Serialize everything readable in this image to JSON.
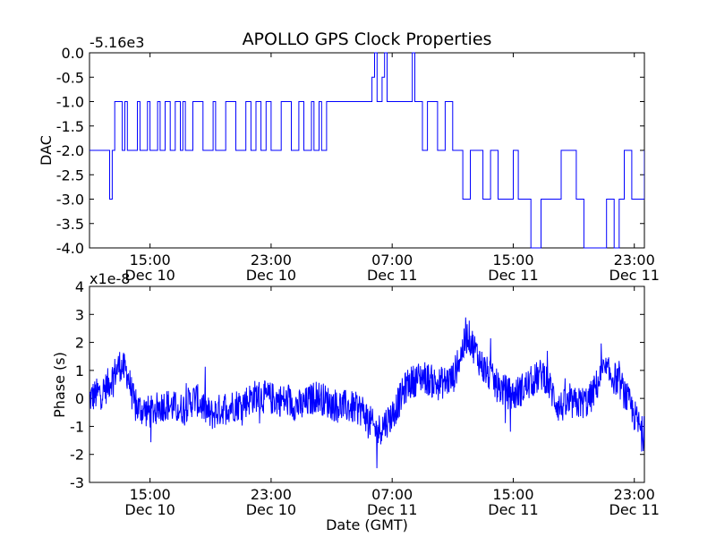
{
  "figure": {
    "title": "APOLLO GPS Clock Properties",
    "xlabel": "Date (GMT)"
  },
  "chart_data": [
    {
      "type": "line",
      "ylabel": "DAC",
      "offset_label": "-5.16e3",
      "ylim": [
        -4.0,
        0.0
      ],
      "xlim": [
        "2010-12-10 11:00",
        "2010-12-11 23:40"
      ],
      "yticks": [
        0.0,
        -0.5,
        -1.0,
        -1.5,
        -2.0,
        -2.5,
        -3.0,
        -3.5,
        -4.0
      ],
      "ytick_labels": [
        "0.0",
        "-0.5",
        "-1.0",
        "-1.5",
        "-2.0",
        "-2.5",
        "-3.0",
        "-3.5",
        "-4.0"
      ],
      "xticks": [
        "2010-12-10 15:00",
        "2010-12-10 23:00",
        "2010-12-11 07:00",
        "2010-12-11 15:00",
        "2010-12-11 23:00"
      ],
      "xtick_time_labels": [
        "15:00",
        "23:00",
        "07:00",
        "15:00",
        "23:00"
      ],
      "xtick_date_labels": [
        "Dec 10",
        "Dec 10",
        "Dec 11",
        "Dec 11",
        "Dec 11"
      ],
      "grid": false,
      "series": [
        {
          "color": "#0000ff",
          "x": [
            "2010-12-10 11:00",
            "2010-12-10 12:10",
            "2010-12-10 12:20",
            "2010-12-10 12:30",
            "2010-12-10 12:40",
            "2010-12-10 13:10",
            "2010-12-10 13:20",
            "2010-12-10 13:30",
            "2010-12-10 14:10",
            "2010-12-10 14:20",
            "2010-12-10 14:50",
            "2010-12-10 15:00",
            "2010-12-10 15:30",
            "2010-12-10 15:40",
            "2010-12-10 16:00",
            "2010-12-10 16:20",
            "2010-12-10 16:40",
            "2010-12-10 17:00",
            "2010-12-10 17:10",
            "2010-12-10 17:20",
            "2010-12-10 17:50",
            "2010-12-10 18:30",
            "2010-12-10 19:10",
            "2010-12-10 19:20",
            "2010-12-10 20:00",
            "2010-12-10 20:40",
            "2010-12-10 21:20",
            "2010-12-10 21:40",
            "2010-12-10 22:00",
            "2010-12-10 22:20",
            "2010-12-10 22:40",
            "2010-12-10 23:00",
            "2010-12-10 23:40",
            "2010-12-11 00:20",
            "2010-12-11 00:50",
            "2010-12-11 01:10",
            "2010-12-11 01:40",
            "2010-12-11 01:50",
            "2010-12-11 02:10",
            "2010-12-11 02:20",
            "2010-12-11 02:40",
            "2010-12-11 03:20",
            "2010-12-11 04:10",
            "2010-12-11 04:50",
            "2010-12-11 05:40",
            "2010-12-11 05:50",
            "2010-12-11 06:00",
            "2010-12-11 06:20",
            "2010-12-11 06:30",
            "2010-12-11 06:40",
            "2010-12-11 07:40",
            "2010-12-11 08:20",
            "2010-12-11 08:30",
            "2010-12-11 09:00",
            "2010-12-11 09:20",
            "2010-12-11 10:00",
            "2010-12-11 10:30",
            "2010-12-11 11:00",
            "2010-12-11 11:40",
            "2010-12-11 12:10",
            "2010-12-11 13:00",
            "2010-12-11 13:30",
            "2010-12-11 14:00",
            "2010-12-11 15:00",
            "2010-12-11 15:20",
            "2010-12-11 16:10",
            "2010-12-11 16:50",
            "2010-12-11 17:10",
            "2010-12-11 18:10",
            "2010-12-11 19:10",
            "2010-12-11 19:20",
            "2010-12-11 19:40",
            "2010-12-11 20:20",
            "2010-12-11 21:10",
            "2010-12-11 21:40",
            "2010-12-11 22:00",
            "2010-12-11 22:20",
            "2010-12-11 22:50",
            "2010-12-11 23:40"
          ],
          "y": [
            -2.0,
            -2.0,
            -3.0,
            -2.0,
            -1.0,
            -2.0,
            -1.0,
            -2.0,
            -1.0,
            -2.0,
            -1.0,
            -2.0,
            -1.0,
            -2.0,
            -1.0,
            -2.0,
            -1.0,
            -2.0,
            -1.0,
            -2.0,
            -1.0,
            -2.0,
            -1.0,
            -2.0,
            -1.0,
            -2.0,
            -1.0,
            -2.0,
            -1.0,
            -2.0,
            -1.0,
            -2.0,
            -1.0,
            -2.0,
            -1.0,
            -2.0,
            -1.0,
            -2.0,
            -1.0,
            -2.0,
            -1.0,
            -1.0,
            -1.0,
            -1.0,
            -0.5,
            0.0,
            -1.0,
            -0.5,
            0.0,
            -1.0,
            -1.0,
            0.0,
            -1.0,
            -2.0,
            -1.0,
            -2.0,
            -1.0,
            -2.0,
            -3.0,
            -2.0,
            -3.0,
            -2.0,
            -3.0,
            -2.0,
            -3.0,
            -4.0,
            -3.0,
            -3.0,
            -2.0,
            -3.0,
            -3.0,
            -4.0,
            -4.0,
            -3.0,
            -4.0,
            -3.0,
            -2.0,
            -3.0,
            -2.0
          ]
        }
      ]
    },
    {
      "type": "line",
      "ylabel": "Phase (s)",
      "offset_label": "x1e-8",
      "ylim": [
        -3,
        4
      ],
      "xlim": [
        "2010-12-10 11:00",
        "2010-12-11 23:40"
      ],
      "yticks": [
        4,
        3,
        2,
        1,
        0,
        -1,
        -2,
        -3
      ],
      "ytick_labels": [
        "4",
        "3",
        "2",
        "1",
        "0",
        "-1",
        "-2",
        "-3"
      ],
      "xticks": [
        "2010-12-10 15:00",
        "2010-12-10 23:00",
        "2010-12-11 07:00",
        "2010-12-11 15:00",
        "2010-12-11 23:00"
      ],
      "xtick_time_labels": [
        "15:00",
        "23:00",
        "07:00",
        "15:00",
        "23:00"
      ],
      "xtick_date_labels": [
        "Dec 10",
        "Dec 10",
        "Dec 11",
        "Dec 11",
        "Dec 11"
      ],
      "grid": false,
      "series": [
        {
          "color": "#0000ff",
          "x": [
            "2010-12-10 11:00",
            "2010-12-10 12:00",
            "2010-12-10 13:00",
            "2010-12-10 13:30",
            "2010-12-10 14:00",
            "2010-12-10 15:00",
            "2010-12-10 16:00",
            "2010-12-10 17:00",
            "2010-12-10 18:00",
            "2010-12-10 19:00",
            "2010-12-10 20:00",
            "2010-12-10 21:00",
            "2010-12-10 22:00",
            "2010-12-10 23:00",
            "2010-12-11 00:00",
            "2010-12-11 01:00",
            "2010-12-11 02:00",
            "2010-12-11 03:00",
            "2010-12-11 04:00",
            "2010-12-11 05:00",
            "2010-12-11 06:00",
            "2010-12-11 07:00",
            "2010-12-11 08:00",
            "2010-12-11 09:00",
            "2010-12-11 10:00",
            "2010-12-11 11:00",
            "2010-12-11 12:00",
            "2010-12-11 13:00",
            "2010-12-11 14:00",
            "2010-12-11 15:00",
            "2010-12-11 16:00",
            "2010-12-11 17:00",
            "2010-12-11 18:00",
            "2010-12-11 19:00",
            "2010-12-11 20:00",
            "2010-12-11 21:00",
            "2010-12-11 22:00",
            "2010-12-11 23:00",
            "2010-12-11 23:40"
          ],
          "y": [
            0.0,
            0.3,
            1.2,
            0.9,
            -0.3,
            -0.5,
            -0.2,
            -0.4,
            0.0,
            -0.6,
            -0.3,
            -0.2,
            0.1,
            0.0,
            -0.1,
            -0.3,
            0.1,
            -0.2,
            -0.3,
            -0.4,
            -1.2,
            -0.6,
            0.5,
            0.8,
            0.5,
            0.7,
            2.3,
            1.1,
            0.4,
            0.1,
            0.5,
            0.9,
            -0.3,
            -0.2,
            -0.1,
            1.0,
            0.6,
            -0.6,
            -1.4
          ]
        }
      ]
    }
  ]
}
